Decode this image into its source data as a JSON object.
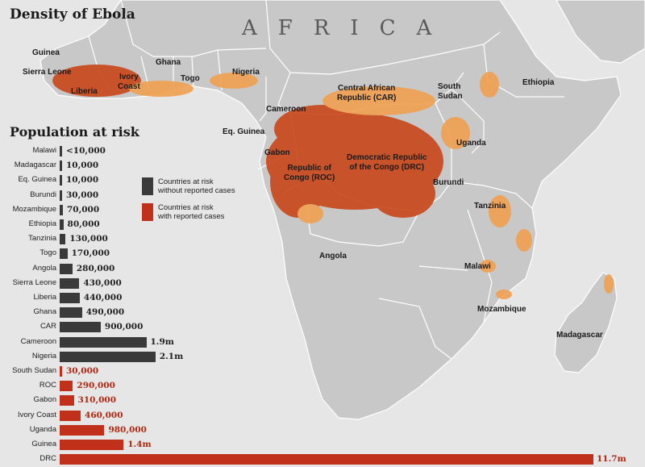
{
  "map": {
    "title": "Density of Ebola",
    "continent_label": "AFRICA",
    "colors": {
      "land": "#c8c8c8",
      "water": "#e6e6e6",
      "borders": "#ffffff",
      "density": "#c8461a",
      "density_light": "#f0a050"
    },
    "country_labels": [
      {
        "name": "guinea",
        "text": "Guinea"
      },
      {
        "name": "sierra-leone",
        "text": "Sierra Leone"
      },
      {
        "name": "liberia",
        "text": "Liberia"
      },
      {
        "name": "ivory-coast",
        "text": "Ivory\nCoast"
      },
      {
        "name": "ghana",
        "text": "Ghana"
      },
      {
        "name": "togo",
        "text": "Togo"
      },
      {
        "name": "nigeria",
        "text": "Nigeria"
      },
      {
        "name": "car",
        "text": "Central African\nRepublic (CAR)"
      },
      {
        "name": "south-sudan",
        "text": "South\nSudan"
      },
      {
        "name": "ethiopia",
        "text": "Ethiopia"
      },
      {
        "name": "cameroon",
        "text": "Cameroon"
      },
      {
        "name": "eq-guinea",
        "text": "Eq. Guinea"
      },
      {
        "name": "gabon",
        "text": "Gabon"
      },
      {
        "name": "uganda",
        "text": "Uganda"
      },
      {
        "name": "roc",
        "text": "Republic of\nCongo (ROC)"
      },
      {
        "name": "drc",
        "text": "Democratic Republic\nof the Congo (DRC)"
      },
      {
        "name": "burundi",
        "text": "Burundi"
      },
      {
        "name": "tanzania",
        "text": "Tanzinia"
      },
      {
        "name": "angola",
        "text": "Angola"
      },
      {
        "name": "malawi",
        "text": "Malawi"
      },
      {
        "name": "mozambique",
        "text": "Mozambique"
      },
      {
        "name": "madagascar",
        "text": "Madagascar"
      }
    ]
  },
  "population": {
    "title": "Population at risk",
    "legend": [
      {
        "label": "Countries at risk\nwithout reported cases",
        "color": "#3a3a3a"
      },
      {
        "label": "Countries at risk\nwith reported cases",
        "color": "#c0301a"
      }
    ],
    "bars": [
      {
        "country": "Malawi",
        "value": 10000,
        "label": "<10,000",
        "reported": false
      },
      {
        "country": "Madagascar",
        "value": 10000,
        "label": "10,000",
        "reported": false
      },
      {
        "country": "Eq. Guinea",
        "value": 10000,
        "label": "10,000",
        "reported": false
      },
      {
        "country": "Burundi",
        "value": 30000,
        "label": "30,000",
        "reported": false
      },
      {
        "country": "Mozambique",
        "value": 70000,
        "label": "70,000",
        "reported": false
      },
      {
        "country": "Ethiopia",
        "value": 80000,
        "label": "80,000",
        "reported": false
      },
      {
        "country": "Tanzinia",
        "value": 130000,
        "label": "130,000",
        "reported": false
      },
      {
        "country": "Togo",
        "value": 170000,
        "label": "170,000",
        "reported": false
      },
      {
        "country": "Angola",
        "value": 280000,
        "label": "280,000",
        "reported": false
      },
      {
        "country": "Sierra Leone",
        "value": 430000,
        "label": "430,000",
        "reported": false
      },
      {
        "country": "Liberia",
        "value": 440000,
        "label": "440,000",
        "reported": false
      },
      {
        "country": "Ghana",
        "value": 490000,
        "label": "490,000",
        "reported": false
      },
      {
        "country": "CAR",
        "value": 900000,
        "label": "900,000",
        "reported": false
      },
      {
        "country": "Cameroon",
        "value": 1900000,
        "label": "1.9m",
        "reported": false
      },
      {
        "country": "Nigeria",
        "value": 2100000,
        "label": "2.1m",
        "reported": false
      },
      {
        "country": "South Sudan",
        "value": 30000,
        "label": "30,000",
        "reported": true
      },
      {
        "country": "ROC",
        "value": 290000,
        "label": "290,000",
        "reported": true
      },
      {
        "country": "Gabon",
        "value": 310000,
        "label": "310,000",
        "reported": true
      },
      {
        "country": "Ivory Coast",
        "value": 460000,
        "label": "460,000",
        "reported": true
      },
      {
        "country": "Uganda",
        "value": 980000,
        "label": "980,000",
        "reported": true
      },
      {
        "country": "Guinea",
        "value": 1400000,
        "label": "1.4m",
        "reported": true
      },
      {
        "country": "DRC",
        "value": 11700000,
        "label": "11.7m",
        "reported": true
      }
    ]
  }
}
